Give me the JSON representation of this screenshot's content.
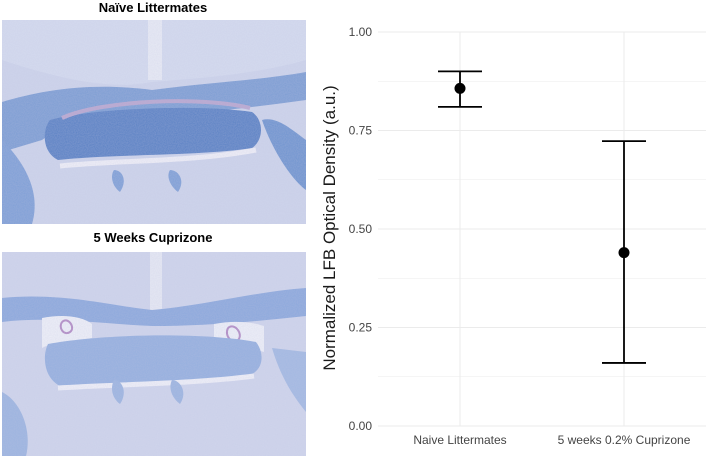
{
  "panels": [
    {
      "title": "Naïve Littermates"
    },
    {
      "title": "5 Weeks Cuprizone"
    }
  ],
  "chart_data": {
    "type": "scatter",
    "style": "point-with-error-bars",
    "categories": [
      "Naive Littermates",
      "5 weeks 0.2% Cuprizone"
    ],
    "values": [
      0.857,
      0.44
    ],
    "error_low": [
      0.81,
      0.16
    ],
    "error_high": [
      0.9,
      0.723
    ],
    "ylabel": "Normalized LFB Optical Density (a.u.)",
    "xlabel": "",
    "ylim": [
      0,
      1
    ],
    "yticks": [
      0,
      0.25,
      0.5,
      0.75,
      1
    ],
    "ytick_labels": [
      "0.00",
      "0.25",
      "0.50",
      "0.75",
      "1.00"
    ],
    "grid": true,
    "colors": {
      "point": "#000000",
      "grid": "#ebebeb",
      "stain_bg": "#ccd3ea",
      "stain_tract": "#5f86c6"
    }
  }
}
